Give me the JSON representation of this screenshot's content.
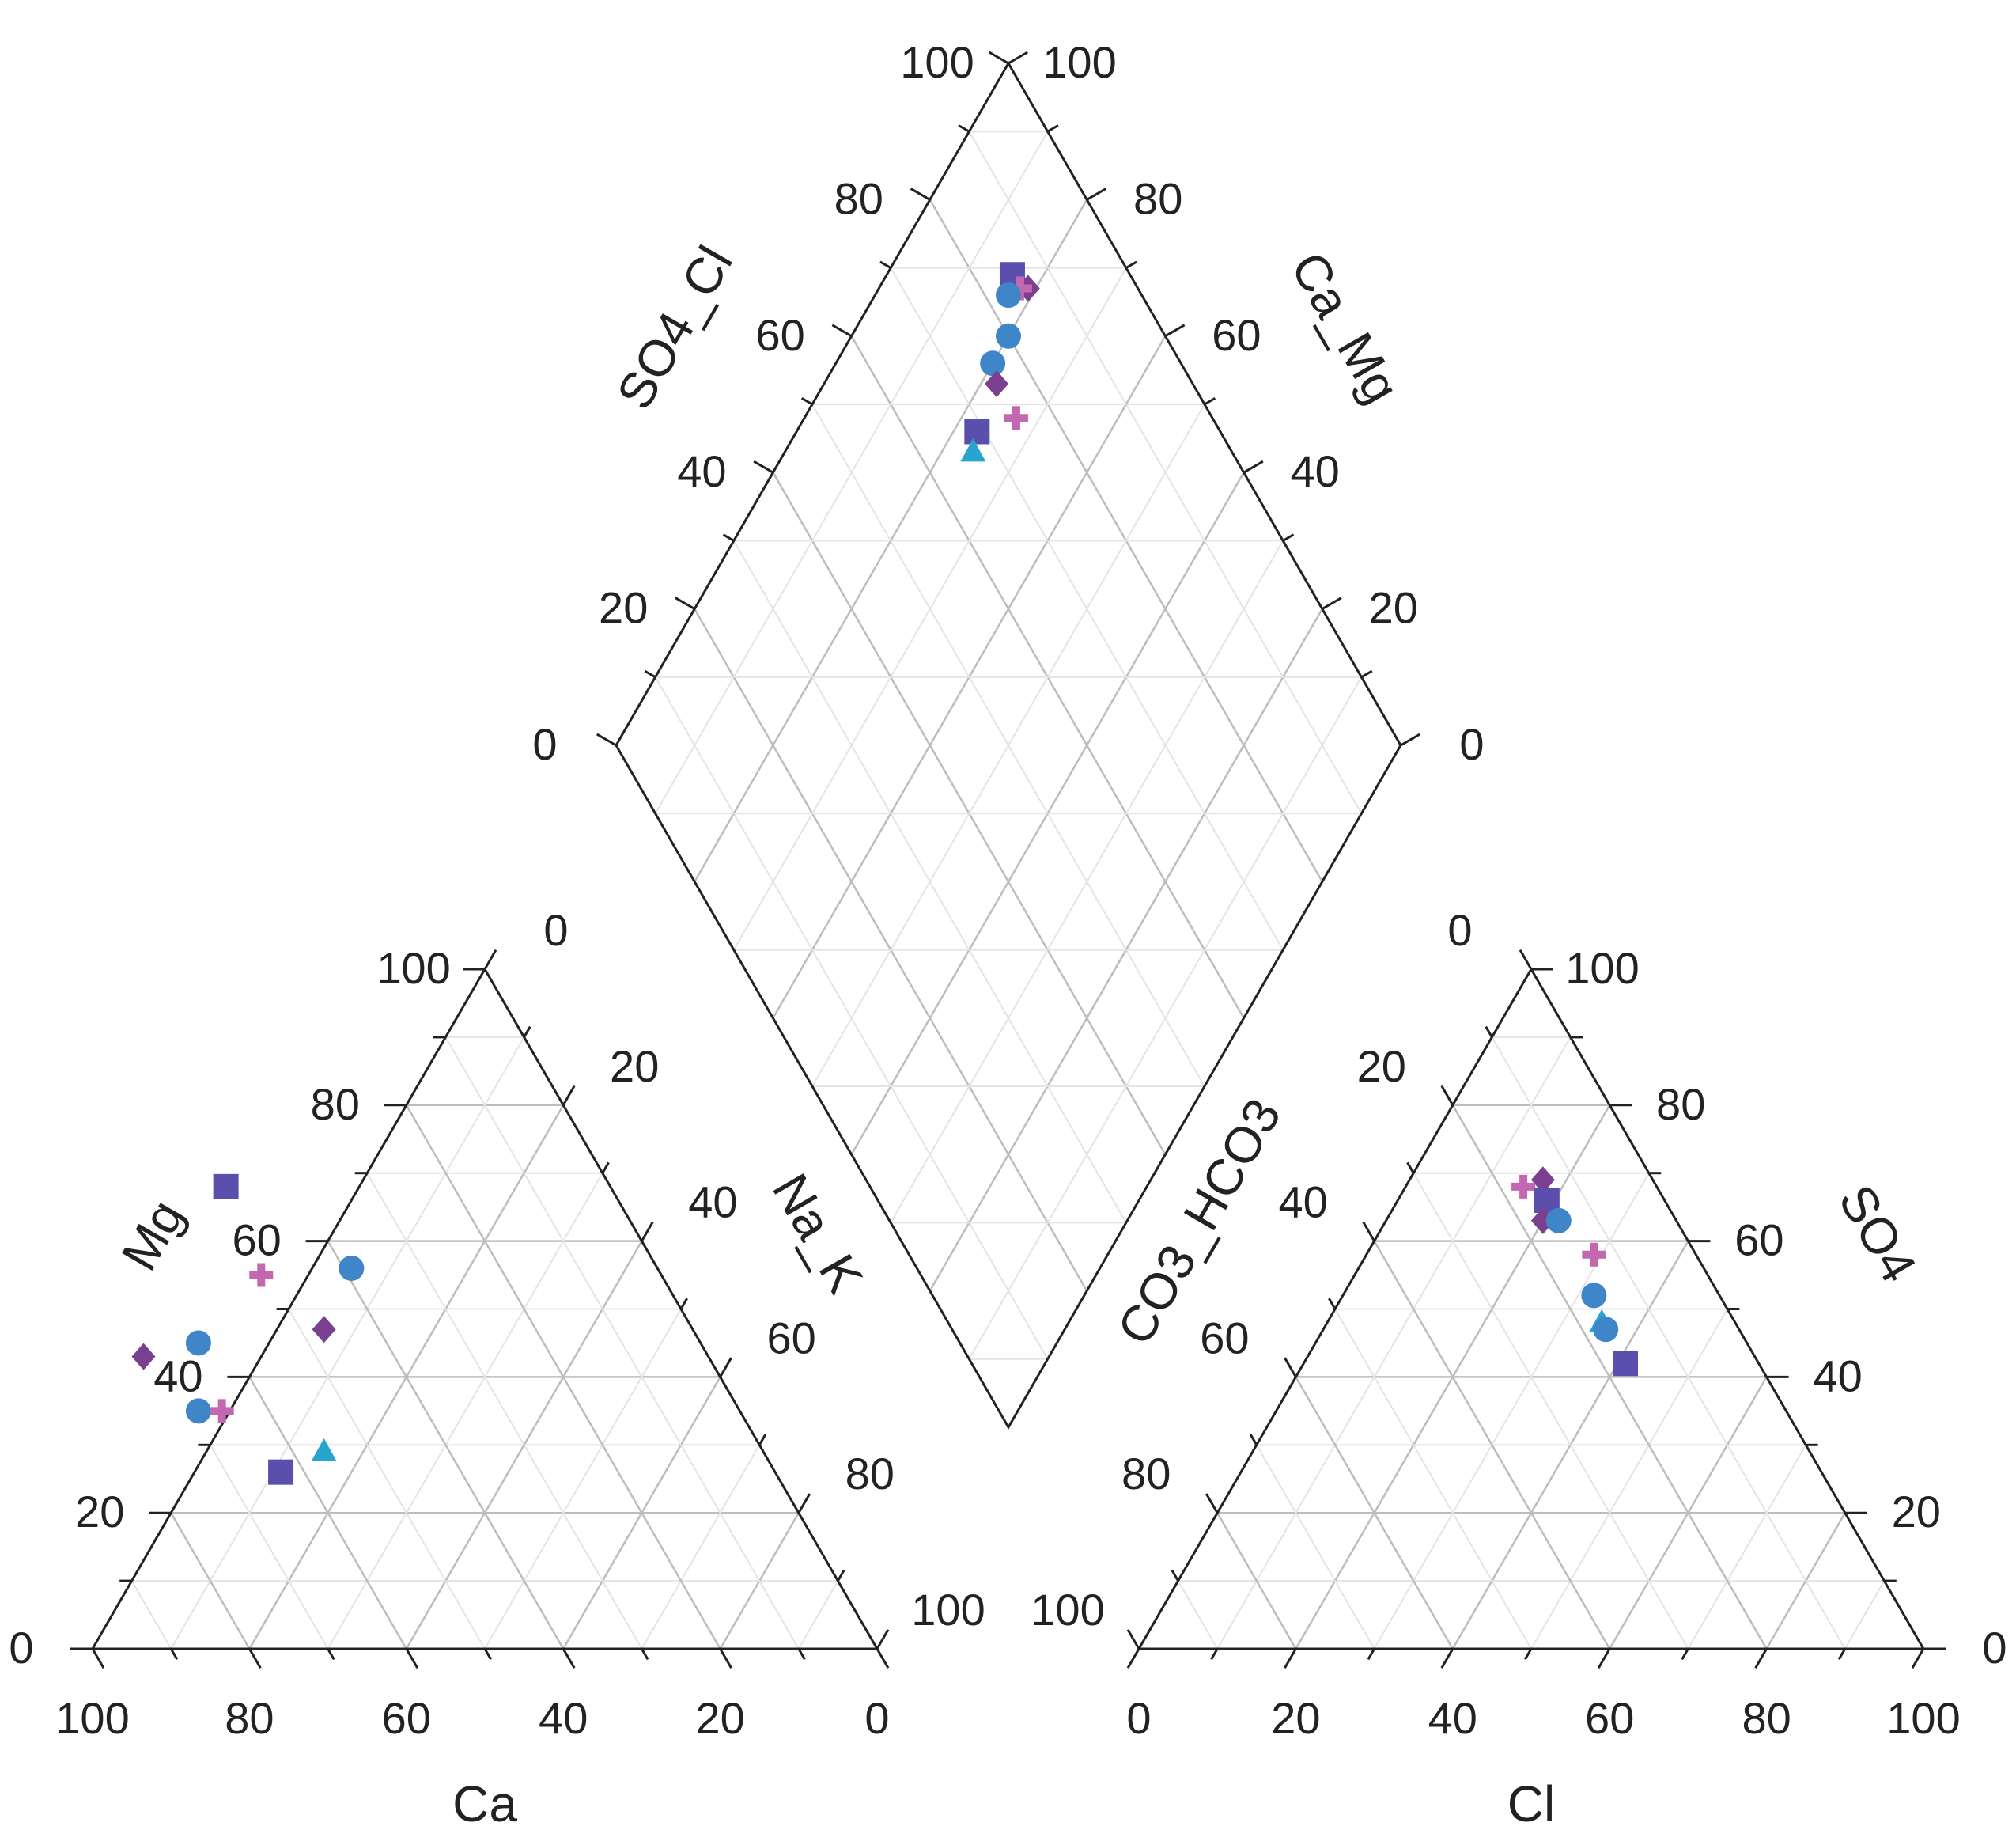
{
  "chart_data": {
    "type": "scatter",
    "subtype": "piper-diagram",
    "grid": true,
    "colors": {
      "square": "#5b4fae",
      "circle": "#3f86c8",
      "diamond": "#7a3f8f",
      "plus": "#c467b1",
      "triangle": "#27a5cf",
      "axis": "#222222",
      "grid_major": "#bdbdbd",
      "grid_minor": "#e4e4e4"
    },
    "ticks": [
      "0",
      "20",
      "40",
      "60",
      "80",
      "100"
    ],
    "cation_triangle": {
      "bottom_label": "Ca",
      "left_label": "Mg",
      "right_label": "Na_K",
      "points": [
        {
          "marker": "square",
          "ca": 49,
          "mg": 68,
          "na_k": -17
        },
        {
          "marker": "circle",
          "ca": 39,
          "mg": 56,
          "na_k": 5
        },
        {
          "marker": "plus",
          "ca": 51,
          "mg": 55,
          "na_k": -6
        },
        {
          "marker": "diamond",
          "ca": 47,
          "mg": 47,
          "na_k": 6
        },
        {
          "marker": "circle",
          "ca": 64,
          "mg": 45,
          "na_k": -9
        },
        {
          "marker": "diamond",
          "ca": 72,
          "mg": 43,
          "na_k": -15
        },
        {
          "marker": "circle",
          "ca": 69,
          "mg": 35,
          "na_k": -4
        },
        {
          "marker": "plus",
          "ca": 66,
          "mg": 35,
          "na_k": -1
        },
        {
          "marker": "triangle",
          "ca": 56,
          "mg": 29,
          "na_k": 15
        },
        {
          "marker": "square",
          "ca": 63,
          "mg": 26,
          "na_k": 11
        }
      ]
    },
    "anion_triangle": {
      "bottom_label": "Cl",
      "left_label": "CO3_HCO3",
      "right_label": "SO4",
      "points": [
        {
          "marker": "diamond",
          "cl": 17,
          "so4": 69,
          "co3_hco3": 14
        },
        {
          "marker": "plus",
          "cl": 15,
          "so4": 68,
          "co3_hco3": 17
        },
        {
          "marker": "square",
          "cl": 19,
          "so4": 66,
          "co3_hco3": 15
        },
        {
          "marker": "diamond",
          "cl": 20,
          "so4": 63,
          "co3_hco3": 17
        },
        {
          "marker": "circle",
          "cl": 22,
          "so4": 63,
          "co3_hco3": 15
        },
        {
          "marker": "plus",
          "cl": 29,
          "so4": 58,
          "co3_hco3": 13
        },
        {
          "marker": "circle",
          "cl": 32,
          "so4": 52,
          "co3_hco3": 16
        },
        {
          "marker": "triangle",
          "cl": 35,
          "so4": 48,
          "co3_hco3": 17
        },
        {
          "marker": "circle",
          "cl": 36,
          "so4": 47,
          "co3_hco3": 17
        },
        {
          "marker": "square",
          "cl": 41,
          "so4": 42,
          "co3_hco3": 17
        }
      ]
    },
    "diamond": {
      "left_label": "SO4_Cl",
      "right_label": "Ca_Mg",
      "points": [
        {
          "marker": "square",
          "so4_cl": 85,
          "ca_mg": 84
        },
        {
          "marker": "diamond",
          "so4_cl": 86,
          "ca_mg": 81
        },
        {
          "marker": "plus",
          "so4_cl": 85,
          "ca_mg": 82
        },
        {
          "marker": "circle",
          "so4_cl": 83,
          "ca_mg": 83
        },
        {
          "marker": "circle",
          "so4_cl": 80,
          "ca_mg": 80
        },
        {
          "marker": "circle",
          "so4_cl": 76,
          "ca_mg": 80
        },
        {
          "marker": "diamond",
          "so4_cl": 75,
          "ca_mg": 78
        },
        {
          "marker": "plus",
          "so4_cl": 75,
          "ca_mg": 73
        },
        {
          "marker": "square",
          "so4_cl": 69,
          "ca_mg": 77
        },
        {
          "marker": "triangle",
          "so4_cl": 67,
          "ca_mg": 76
        }
      ]
    }
  }
}
